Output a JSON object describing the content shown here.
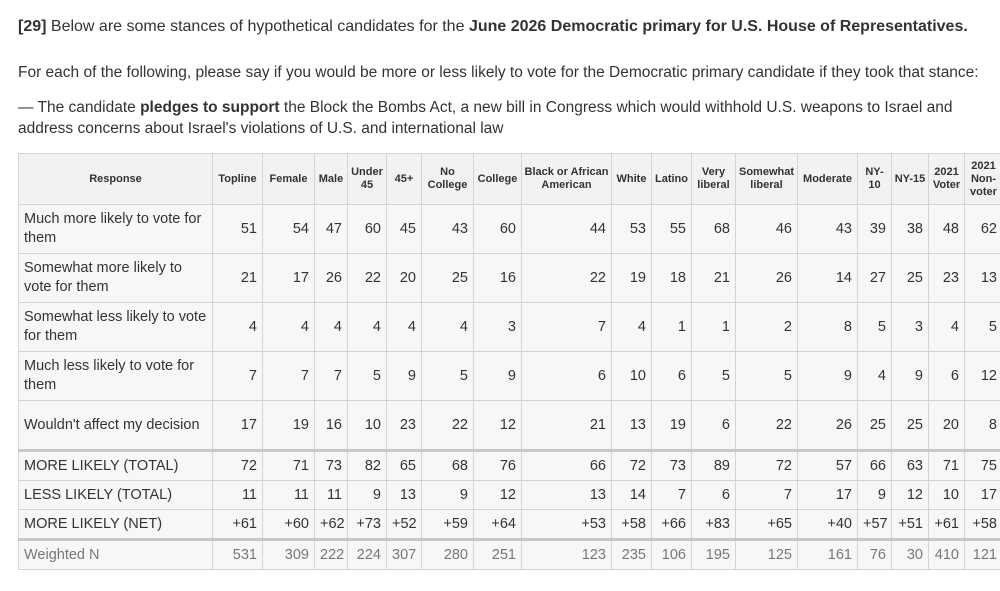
{
  "question": {
    "number": "[29]",
    "text_before": "Below are some stances of hypothetical candidates for the",
    "text_bold": "June 2026 Democratic primary for U.S. House of Representatives."
  },
  "instruction": "For each of the following, please say if you would be more or less likely to vote for the Democratic primary candidate if they took that stance:",
  "stance": {
    "prefix": "— The candidate",
    "bold": "pledges to support",
    "rest": "the Block the Bombs Act, a new bill in Congress which would withhold U.S. weapons to Israel and address concerns about Israel's violations of U.S. and international law"
  },
  "table": {
    "headers": [
      "Response",
      "Topline",
      "Female",
      "Male",
      "Under 45",
      "45+",
      "No College",
      "College",
      "Black or African American",
      "White",
      "Latino",
      "Very liberal",
      "Somewhat liberal",
      "Moderate",
      "NY-10",
      "NY-15",
      "2021 Voter",
      "2021 Non-voter"
    ],
    "rows": [
      {
        "label": "Much more likely to vote for them",
        "values": [
          "51",
          "54",
          "47",
          "60",
          "45",
          "43",
          "60",
          "44",
          "53",
          "55",
          "68",
          "46",
          "43",
          "39",
          "38",
          "48",
          "62"
        ]
      },
      {
        "label": "Somewhat more likely to vote for them",
        "values": [
          "21",
          "17",
          "26",
          "22",
          "20",
          "25",
          "16",
          "22",
          "19",
          "18",
          "21",
          "26",
          "14",
          "27",
          "25",
          "23",
          "13"
        ]
      },
      {
        "label": "Somewhat less likely to vote for them",
        "values": [
          "4",
          "4",
          "4",
          "4",
          "4",
          "4",
          "3",
          "7",
          "4",
          "1",
          "1",
          "2",
          "8",
          "5",
          "3",
          "4",
          "5"
        ]
      },
      {
        "label": "Much less likely to vote for them",
        "values": [
          "7",
          "7",
          "7",
          "5",
          "9",
          "5",
          "9",
          "6",
          "10",
          "6",
          "5",
          "5",
          "9",
          "4",
          "9",
          "6",
          "12"
        ]
      },
      {
        "label": "Wouldn't affect my decision",
        "values": [
          "17",
          "19",
          "16",
          "10",
          "23",
          "22",
          "12",
          "21",
          "13",
          "19",
          "6",
          "22",
          "26",
          "25",
          "25",
          "20",
          "8"
        ]
      },
      {
        "label": "MORE LIKELY (TOTAL)",
        "values": [
          "72",
          "71",
          "73",
          "82",
          "65",
          "68",
          "76",
          "66",
          "72",
          "73",
          "89",
          "72",
          "57",
          "66",
          "63",
          "71",
          "75"
        ]
      },
      {
        "label": "LESS LIKELY (TOTAL)",
        "values": [
          "11",
          "11",
          "11",
          "9",
          "13",
          "9",
          "12",
          "13",
          "14",
          "7",
          "6",
          "7",
          "17",
          "9",
          "12",
          "10",
          "17"
        ]
      },
      {
        "label": "MORE LIKELY (NET)",
        "values": [
          "+61",
          "+60",
          "+62",
          "+73",
          "+52",
          "+59",
          "+64",
          "+53",
          "+58",
          "+66",
          "+83",
          "+65",
          "+40",
          "+57",
          "+51",
          "+61",
          "+58"
        ]
      },
      {
        "label": "Weighted N",
        "values": [
          "531",
          "309",
          "222",
          "224",
          "307",
          "280",
          "251",
          "123",
          "235",
          "106",
          "195",
          "125",
          "161",
          "76",
          "30",
          "410",
          "121"
        ]
      }
    ]
  }
}
